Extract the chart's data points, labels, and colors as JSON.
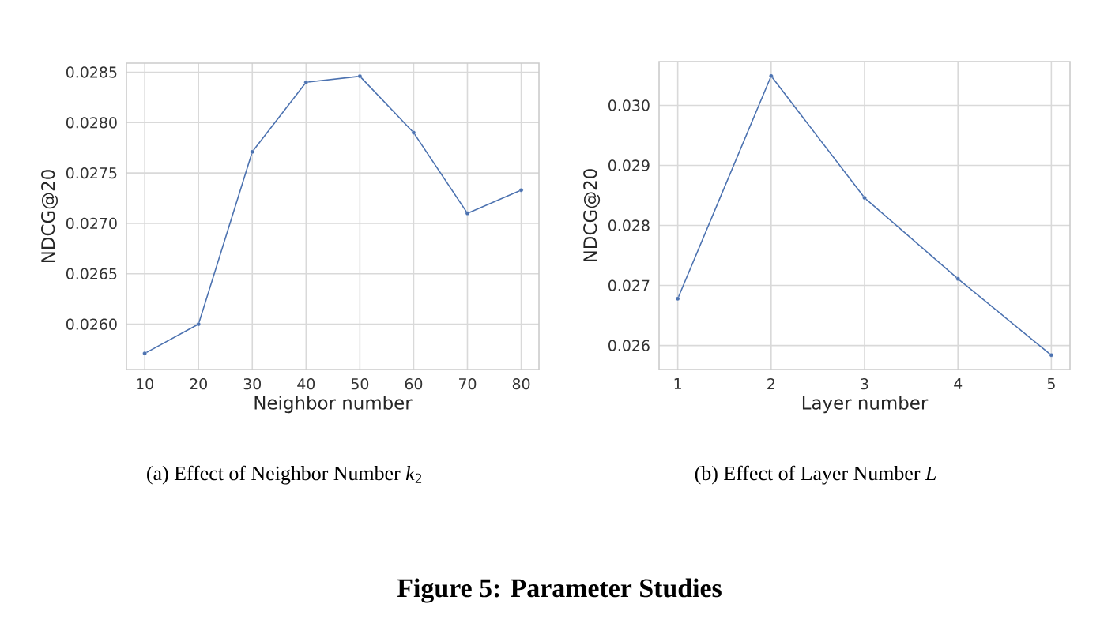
{
  "chart_data": [
    {
      "type": "line",
      "xlabel": "Neighbor number",
      "ylabel": "NDCG@20",
      "x": [
        10,
        20,
        30,
        40,
        50,
        60,
        70,
        80
      ],
      "series": [
        {
          "color": "#4c72b0",
          "values": [
            0.02571,
            0.026,
            0.02771,
            0.0284,
            0.02846,
            0.0279,
            0.0271,
            0.02733
          ]
        }
      ],
      "xlim": [
        6.6,
        83.3
      ],
      "ylim": [
        0.02555,
        0.02859
      ],
      "xticks": [
        10,
        20,
        30,
        40,
        50,
        60,
        70,
        80
      ],
      "yticks": [
        {
          "value": 0.026,
          "label": "0.0260"
        },
        0.0265,
        {
          "value": 0.027,
          "label": "0.0270"
        },
        0.0275,
        {
          "value": 0.028,
          "label": "0.0280"
        },
        0.0285
      ],
      "grid": true,
      "marker": "circle",
      "annotations": [
        "(a) Effect of Neighbor Number *k*$_{2}$",
        "**Figure 5: Parameter Studies**"
      ]
    },
    {
      "type": "line",
      "xlabel": "Layer number",
      "ylabel": "NDCG@20",
      "x": [
        1,
        2,
        3,
        4,
        5
      ],
      "series": [
        {
          "color": "#4c72b0",
          "values": [
            0.02678,
            0.03049,
            0.02846,
            0.02711,
            0.02584
          ]
        }
      ],
      "xlim": [
        0.8,
        5.2
      ],
      "ylim": [
        0.0256,
        0.03073
      ],
      "xticks": [
        1,
        2,
        3,
        4,
        5
      ],
      "yticks": [
        0.026,
        0.027,
        0.028,
        0.029,
        {
          "value": 0.03,
          "label": "0.030"
        }
      ],
      "grid": true,
      "marker": "circle",
      "annotations": [
        "(b) Effect of Layer Number *L*"
      ]
    }
  ]
}
